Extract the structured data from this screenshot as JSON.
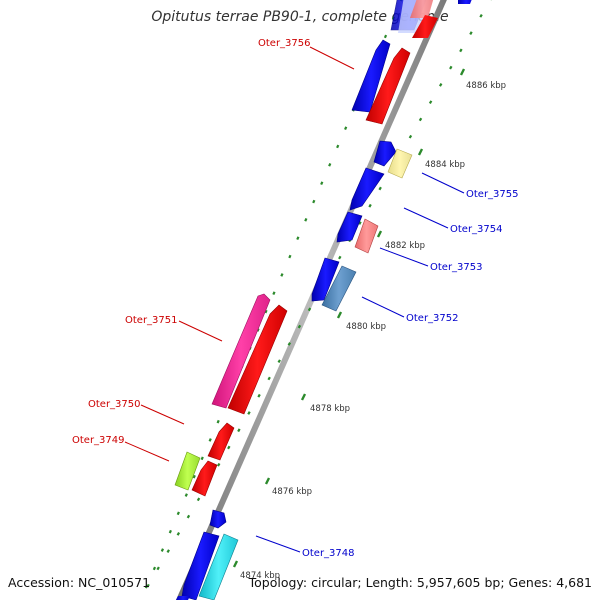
{
  "title": "Opitutus terrae PB90-1, complete genome",
  "footer": {
    "accession": "Accession: NC_010571",
    "summary": "Topology: circular; Length: 5,957,605 bp; Genes: 4,681"
  },
  "colors": {
    "axis": "#8c8c8c",
    "tick": "#2c8a2c",
    "label_minus": "#cc0000",
    "label_plus": "#0000cc",
    "kbp_text": "#333333"
  },
  "kbp_ticks": [
    {
      "label": "4886 kbp"
    },
    {
      "label": "4884 kbp"
    },
    {
      "label": "4882 kbp"
    },
    {
      "label": "4880 kbp"
    },
    {
      "label": "4878 kbp"
    },
    {
      "label": "4876 kbp"
    },
    {
      "label": "4874 kbp"
    }
  ],
  "gene_labels": [
    {
      "name": "Oter_3756",
      "strand": "minus"
    },
    {
      "name": "Oter_3755",
      "strand": "plus"
    },
    {
      "name": "Oter_3754",
      "strand": "plus"
    },
    {
      "name": "Oter_3753",
      "strand": "plus"
    },
    {
      "name": "Oter_3752",
      "strand": "plus"
    },
    {
      "name": "Oter_3751",
      "strand": "minus"
    },
    {
      "name": "Oter_3750",
      "strand": "minus"
    },
    {
      "name": "Oter_3749",
      "strand": "minus"
    },
    {
      "name": "Oter_3748",
      "strand": "plus"
    }
  ]
}
